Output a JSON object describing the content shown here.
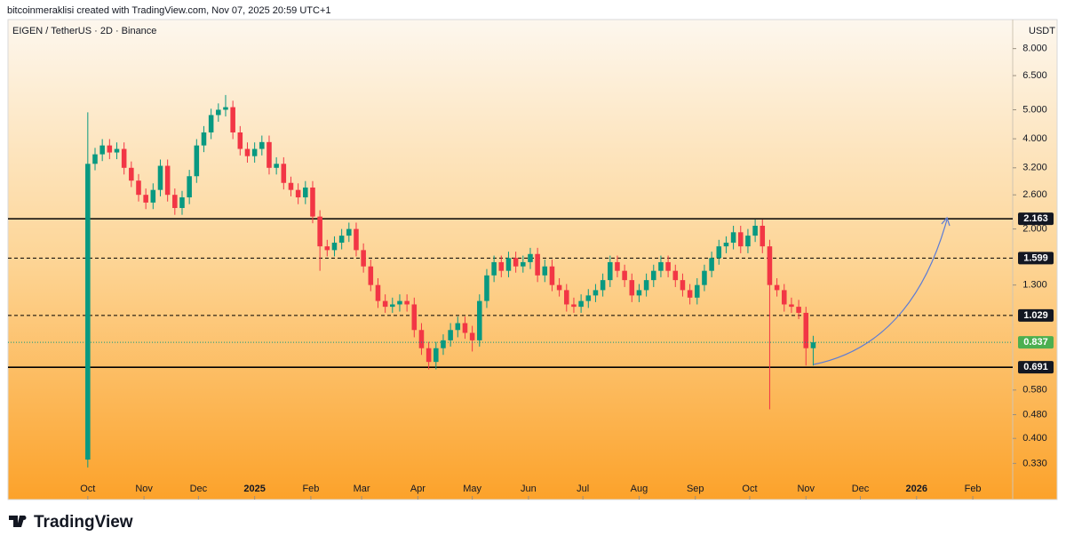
{
  "header": "bitcoinmeraklisi created with TradingView.com, Nov 07, 2025 20:59 UTC+1",
  "footer": {
    "logo": "TradingView"
  },
  "chart_data": {
    "type": "candlestick",
    "title": "EIGEN / TetherUS · 2D · Binance",
    "y_unit": "USDT",
    "log_scale": true,
    "up_color": "#089981",
    "down_color": "#f23645",
    "xlim": [
      -44,
      510
    ],
    "ylim": [
      0.25,
      10
    ],
    "xticks": [
      {
        "value": 0,
        "label": "Oct"
      },
      {
        "value": 31,
        "label": "Nov"
      },
      {
        "value": 61,
        "label": "Dec"
      },
      {
        "value": 92,
        "label": "2025"
      },
      {
        "value": 123,
        "label": "Feb"
      },
      {
        "value": 151,
        "label": "Mar"
      },
      {
        "value": 182,
        "label": "Apr"
      },
      {
        "value": 212,
        "label": "May"
      },
      {
        "value": 243,
        "label": "Jun"
      },
      {
        "value": 273,
        "label": "Jul"
      },
      {
        "value": 304,
        "label": "Aug"
      },
      {
        "value": 335,
        "label": "Sep"
      },
      {
        "value": 365,
        "label": "Oct"
      },
      {
        "value": 396,
        "label": "Nov"
      },
      {
        "value": 426,
        "label": "Dec"
      },
      {
        "value": 457,
        "label": "2026"
      },
      {
        "value": 488,
        "label": "Feb"
      }
    ],
    "yticks": [
      {
        "value": 8,
        "label": "8.000"
      },
      {
        "value": 6.5,
        "label": "6.500"
      },
      {
        "value": 5,
        "label": "5.000"
      },
      {
        "value": 4,
        "label": "4.000"
      },
      {
        "value": 3.2,
        "label": "3.200"
      },
      {
        "value": 2.6,
        "label": "2.600"
      },
      {
        "value": 2,
        "label": "2.000"
      },
      {
        "value": 1.3,
        "label": "1.300"
      },
      {
        "value": 0.58,
        "label": "0.580"
      },
      {
        "value": 0.48,
        "label": "0.480"
      },
      {
        "value": 0.4,
        "label": "0.400"
      },
      {
        "value": 0.33,
        "label": "0.330"
      }
    ],
    "levels": [
      {
        "value": 2.163,
        "style": "solid"
      },
      {
        "value": 1.599,
        "style": "dashed"
      },
      {
        "value": 1.029,
        "style": "dashed"
      },
      {
        "value": 0.691,
        "style": "solid"
      }
    ],
    "x": [
      0,
      4,
      8,
      12,
      16,
      20,
      24,
      28,
      32,
      36,
      40,
      44,
      48,
      52,
      56,
      60,
      64,
      68,
      72,
      76,
      80,
      84,
      88,
      92,
      96,
      100,
      104,
      108,
      112,
      116,
      120,
      124,
      128,
      132,
      136,
      140,
      144,
      148,
      152,
      156,
      160,
      164,
      168,
      172,
      176,
      180,
      184,
      188,
      192,
      196,
      200,
      204,
      208,
      212,
      216,
      220,
      224,
      228,
      232,
      236,
      240,
      244,
      248,
      252,
      256,
      260,
      264,
      268,
      272,
      276,
      280,
      284,
      288,
      292,
      296,
      300,
      304,
      308,
      312,
      316,
      320,
      324,
      328,
      332,
      336,
      340,
      344,
      348,
      352,
      356,
      360,
      364,
      368,
      372,
      376,
      380,
      384,
      388,
      392,
      396,
      400
    ],
    "open": [
      0.34,
      3.3,
      3.55,
      3.8,
      3.6,
      3.7,
      3.2,
      2.9,
      2.6,
      2.45,
      2.7,
      3.25,
      2.6,
      2.35,
      2.55,
      3.0,
      3.8,
      4.2,
      4.8,
      5.0,
      5.1,
      4.2,
      3.7,
      3.5,
      3.7,
      3.9,
      3.2,
      3.3,
      2.85,
      2.7,
      2.55,
      2.75,
      2.2,
      1.75,
      1.7,
      1.8,
      1.9,
      2.0,
      1.7,
      1.5,
      1.3,
      1.15,
      1.1,
      1.12,
      1.15,
      1.12,
      0.92,
      0.8,
      0.72,
      0.8,
      0.85,
      0.92,
      0.97,
      0.9,
      0.85,
      1.15,
      1.4,
      1.55,
      1.45,
      1.6,
      1.5,
      1.55,
      1.65,
      1.4,
      1.5,
      1.3,
      1.25,
      1.12,
      1.1,
      1.15,
      1.2,
      1.25,
      1.35,
      1.55,
      1.45,
      1.35,
      1.2,
      1.25,
      1.35,
      1.45,
      1.55,
      1.45,
      1.35,
      1.25,
      1.18,
      1.3,
      1.45,
      1.6,
      1.75,
      1.8,
      1.95,
      1.75,
      1.9,
      2.05,
      1.75,
      1.3,
      1.25,
      1.12,
      1.1,
      1.05,
      0.8
    ],
    "high": [
      4.9,
      3.73,
      3.99,
      3.99,
      3.89,
      3.89,
      3.36,
      3.05,
      2.73,
      2.84,
      3.41,
      3.41,
      2.73,
      2.68,
      3.15,
      3.99,
      4.41,
      5.04,
      5.25,
      5.6,
      5.36,
      4.41,
      3.89,
      3.89,
      4.1,
      4.1,
      3.47,
      3.47,
      2.99,
      2.84,
      2.89,
      2.89,
      2.31,
      1.84,
      1.89,
      2.0,
      2.1,
      2.1,
      1.79,
      1.58,
      1.37,
      1.21,
      1.18,
      1.21,
      1.21,
      1.18,
      0.97,
      0.84,
      0.84,
      0.89,
      0.97,
      1.02,
      1.02,
      0.95,
      1.21,
      1.47,
      1.63,
      1.63,
      1.68,
      1.68,
      1.63,
      1.73,
      1.73,
      1.58,
      1.58,
      1.37,
      1.31,
      1.18,
      1.21,
      1.26,
      1.31,
      1.42,
      1.63,
      1.63,
      1.52,
      1.42,
      1.31,
      1.42,
      1.52,
      1.63,
      1.63,
      1.52,
      1.42,
      1.31,
      1.37,
      1.52,
      1.68,
      1.84,
      1.89,
      2.05,
      2.05,
      2.0,
      2.15,
      2.15,
      1.84,
      1.37,
      1.31,
      1.18,
      1.16,
      1.1,
      0.88
    ],
    "low": [
      0.32,
      3.14,
      3.37,
      3.42,
      3.42,
      3.04,
      2.76,
      2.47,
      2.33,
      2.33,
      2.57,
      2.47,
      2.23,
      2.23,
      2.42,
      2.85,
      3.61,
      3.99,
      4.56,
      4.75,
      3.99,
      3.52,
      3.33,
      3.33,
      3.52,
      3.04,
      3.04,
      2.71,
      2.57,
      2.42,
      2.42,
      2.09,
      1.45,
      1.62,
      1.62,
      1.71,
      1.81,
      1.62,
      1.43,
      1.24,
      1.09,
      1.05,
      1.05,
      1.06,
      1.06,
      0.87,
      0.76,
      0.68,
      0.68,
      0.76,
      0.81,
      0.87,
      0.86,
      0.78,
      0.81,
      1.09,
      1.33,
      1.38,
      1.38,
      1.43,
      1.43,
      1.47,
      1.33,
      1.33,
      1.24,
      1.19,
      1.06,
      1.05,
      1.05,
      1.09,
      1.14,
      1.19,
      1.28,
      1.38,
      1.28,
      1.14,
      1.14,
      1.19,
      1.28,
      1.38,
      1.38,
      1.28,
      1.19,
      1.12,
      1.12,
      1.24,
      1.38,
      1.52,
      1.66,
      1.71,
      1.66,
      1.66,
      1.81,
      1.66,
      0.5,
      1.19,
      1.06,
      1.05,
      1.0,
      0.7,
      0.7
    ],
    "close": [
      3.3,
      3.55,
      3.8,
      3.6,
      3.7,
      3.2,
      2.9,
      2.6,
      2.45,
      2.7,
      3.25,
      2.6,
      2.35,
      2.55,
      3.0,
      3.8,
      4.2,
      4.8,
      5.0,
      5.1,
      4.2,
      3.7,
      3.5,
      3.7,
      3.9,
      3.2,
      3.3,
      2.85,
      2.7,
      2.55,
      2.75,
      2.2,
      1.75,
      1.7,
      1.8,
      1.9,
      2.0,
      1.7,
      1.5,
      1.3,
      1.15,
      1.1,
      1.12,
      1.15,
      1.12,
      0.92,
      0.8,
      0.72,
      0.8,
      0.85,
      0.92,
      0.97,
      0.9,
      0.85,
      1.15,
      1.4,
      1.55,
      1.45,
      1.6,
      1.5,
      1.55,
      1.65,
      1.4,
      1.5,
      1.3,
      1.25,
      1.12,
      1.1,
      1.15,
      1.2,
      1.25,
      1.35,
      1.55,
      1.45,
      1.35,
      1.2,
      1.25,
      1.35,
      1.45,
      1.55,
      1.45,
      1.35,
      1.25,
      1.18,
      1.3,
      1.45,
      1.6,
      1.75,
      1.8,
      1.95,
      1.75,
      1.9,
      2.05,
      1.75,
      1.3,
      1.25,
      1.12,
      1.1,
      1.05,
      0.8,
      0.837
    ]
  }
}
